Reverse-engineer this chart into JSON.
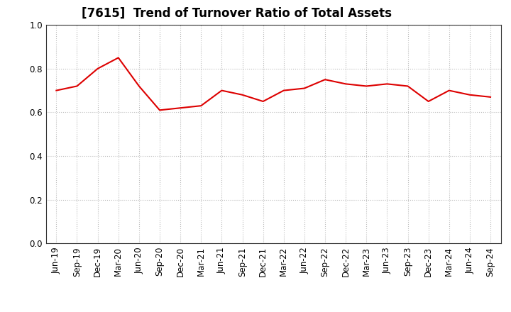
{
  "title": "[7615]  Trend of Turnover Ratio of Total Assets",
  "x_labels": [
    "Jun-19",
    "Sep-19",
    "Dec-19",
    "Mar-20",
    "Jun-20",
    "Sep-20",
    "Dec-20",
    "Mar-21",
    "Jun-21",
    "Sep-21",
    "Dec-21",
    "Mar-22",
    "Jun-22",
    "Sep-22",
    "Dec-22",
    "Mar-23",
    "Jun-23",
    "Sep-23",
    "Dec-23",
    "Mar-24",
    "Jun-24",
    "Sep-24"
  ],
  "y_values": [
    0.7,
    0.72,
    0.8,
    0.85,
    0.72,
    0.61,
    0.62,
    0.63,
    0.7,
    0.68,
    0.65,
    0.7,
    0.71,
    0.75,
    0.73,
    0.72,
    0.73,
    0.72,
    0.65,
    0.7,
    0.68,
    0.67
  ],
  "line_color": "#dd0000",
  "line_width": 1.5,
  "ylim": [
    0.0,
    1.0
  ],
  "yticks": [
    0.0,
    0.2,
    0.4,
    0.6,
    0.8,
    1.0
  ],
  "grid_color": "#bbbbbb",
  "background_color": "#ffffff",
  "title_fontsize": 12,
  "tick_fontsize": 8.5
}
